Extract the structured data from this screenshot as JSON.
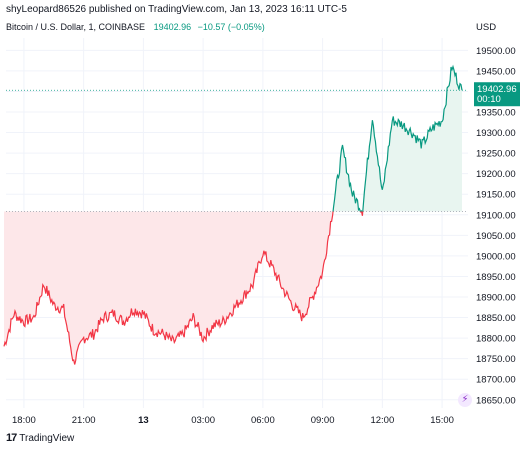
{
  "header": {
    "published_text": "shyLeopard86526 published on TradingView.com, Jan 13, 2023 16:11 UTC-5"
  },
  "legend": {
    "symbol": "Bitcoin / U.S. Dollar, 1, COINBASE",
    "last_price": "19402.96",
    "change": "−10.57 (−0.05%)"
  },
  "price_label": {
    "value": "19402.96",
    "countdown": "00:10"
  },
  "footer": {
    "brand": "TradingView"
  },
  "colors": {
    "up": "#089981",
    "down": "#f23645",
    "up_fill": "#e8f5f0",
    "down_fill": "#fde7e9",
    "grid": "#f0f3fa",
    "axis_text": "#131722"
  },
  "chart_data": {
    "type": "line",
    "yaxis_unit": "USD",
    "baseline": 19108,
    "last_value": 19402.96,
    "ylim": [
      18630,
      19530
    ],
    "yticks": [
      18650,
      18700,
      18750,
      18800,
      18850,
      18900,
      18950,
      19000,
      19050,
      19100,
      19150,
      19200,
      19250,
      19300,
      19350,
      19400,
      19450,
      19500
    ],
    "xlabels": [
      "18:00",
      "21:00",
      "13",
      "03:00",
      "06:00",
      "09:00",
      "12:00",
      "15:00"
    ],
    "x": [
      "17:00",
      "17:30",
      "18:00",
      "18:30",
      "19:00",
      "19:30",
      "20:00",
      "20:30",
      "21:00",
      "21:30",
      "22:00",
      "22:30",
      "23:00",
      "23:30",
      "00:00",
      "00:30",
      "01:00",
      "01:30",
      "02:00",
      "02:30",
      "03:00",
      "03:30",
      "04:00",
      "04:30",
      "05:00",
      "05:30",
      "06:00",
      "06:30",
      "07:00",
      "07:30",
      "08:00",
      "08:30",
      "09:00",
      "09:30",
      "10:00",
      "10:30",
      "11:00",
      "11:30",
      "12:00",
      "12:30",
      "13:00",
      "13:30",
      "14:00",
      "14:30",
      "15:00",
      "15:30",
      "16:00"
    ],
    "series": [
      {
        "values": [
          18780,
          18860,
          18840,
          18850,
          18930,
          18880,
          18870,
          18740,
          18800,
          18810,
          18850,
          18860,
          18840,
          18870,
          18860,
          18820,
          18810,
          18790,
          18810,
          18850,
          18800,
          18830,
          18840,
          18870,
          18900,
          18930,
          19010,
          18970,
          18920,
          18880,
          18850,
          18900,
          18960,
          19110,
          19260,
          19150,
          19110,
          19340,
          19150,
          19330,
          19320,
          19300,
          19270,
          19310,
          19330,
          19460,
          19400
        ]
      }
    ]
  }
}
